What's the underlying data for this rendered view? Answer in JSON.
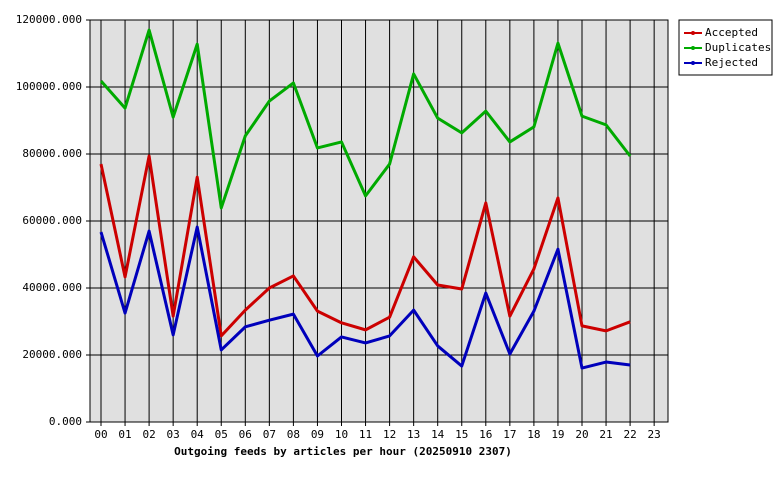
{
  "chart_data": {
    "type": "line",
    "x_label": "Outgoing feeds by articles per hour (20250910 2307)",
    "categories": [
      "00",
      "01",
      "02",
      "03",
      "04",
      "05",
      "06",
      "07",
      "08",
      "09",
      "10",
      "11",
      "12",
      "13",
      "14",
      "15",
      "16",
      "17",
      "18",
      "19",
      "20",
      "21",
      "22",
      "23"
    ],
    "series": [
      {
        "name": "Accepted",
        "color": "#cc0000",
        "values": [
          77000,
          43300,
          79400,
          31600,
          73100,
          25700,
          33400,
          40000,
          43600,
          33100,
          29600,
          27500,
          31300,
          49300,
          40900,
          39700,
          65400,
          31600,
          45700,
          66900,
          28700,
          27200,
          29900,
          null
        ]
      },
      {
        "name": "Duplicates",
        "color": "#00aa00",
        "values": [
          101800,
          93700,
          117000,
          91000,
          112800,
          63900,
          85400,
          95800,
          101200,
          81800,
          83600,
          67500,
          77000,
          103900,
          90700,
          86300,
          92800,
          83600,
          88100,
          113100,
          91300,
          88700,
          79400,
          null
        ]
      },
      {
        "name": "Rejected",
        "color": "#0000bb",
        "values": [
          56700,
          32500,
          57000,
          26000,
          58200,
          21500,
          28400,
          30400,
          32200,
          19700,
          25400,
          23600,
          25700,
          33400,
          22700,
          16700,
          38500,
          20300,
          33100,
          51600,
          16100,
          17900,
          17000,
          null
        ]
      }
    ],
    "ylim": [
      0,
      120000
    ],
    "yticks": [
      {
        "value": 0,
        "label": "0.000"
      },
      {
        "value": 20000,
        "label": "20000.000"
      },
      {
        "value": 40000,
        "label": "40000.000"
      },
      {
        "value": 60000,
        "label": "60000.000"
      },
      {
        "value": 80000,
        "label": "80000.000"
      },
      {
        "value": 100000,
        "label": "100000.000"
      },
      {
        "value": 120000,
        "label": "120000.000"
      }
    ],
    "grid": true,
    "legend": "right"
  }
}
